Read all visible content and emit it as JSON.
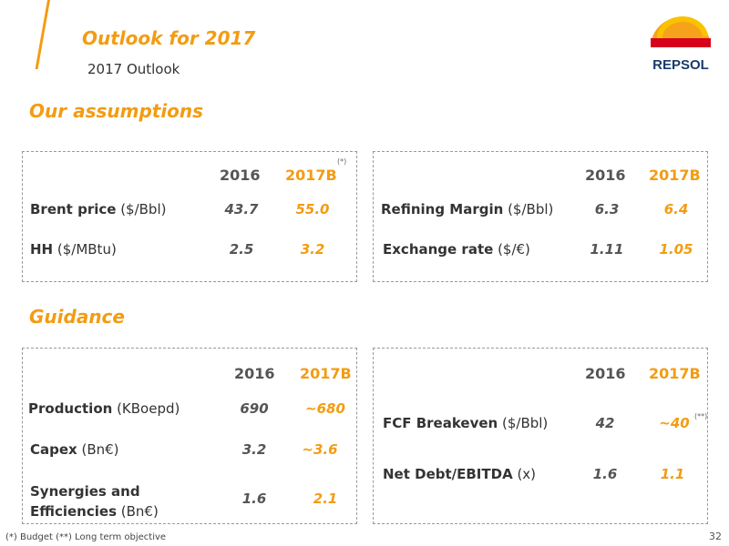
{
  "header": {
    "title": "Outlook for 2017",
    "subtitle": "2017 Outlook",
    "brand": "REPSOL"
  },
  "sections": {
    "assumptions": "Our assumptions",
    "guidance": "Guidance"
  },
  "assumptions_left": {
    "col_2016": "2016",
    "col_2017": "2017B",
    "note_mark": "(*)",
    "rows": [
      {
        "label_bold": "Brent price",
        "label_unit": " ($/Bbl)",
        "v2016": "43.7",
        "v2017": "55.0"
      },
      {
        "label_bold": "HH",
        "label_unit": " ($/MBtu)",
        "v2016": "2.5",
        "v2017": "3.2"
      }
    ]
  },
  "assumptions_right": {
    "col_2016": "2016",
    "col_2017": "2017B",
    "rows": [
      {
        "label_bold": "Refining Margin",
        "label_unit": " ($/Bbl)",
        "v2016": "6.3",
        "v2017": "6.4"
      },
      {
        "label_bold": "Exchange rate",
        "label_unit": " ($/€)",
        "v2016": "1.11",
        "v2017": "1.05"
      }
    ]
  },
  "guidance_left": {
    "col_2016": "2016",
    "col_2017": "2017B",
    "rows": [
      {
        "label_bold": "Production",
        "label_unit": " (KBoepd)",
        "v2016": "690",
        "v2017": "~680"
      },
      {
        "label_bold": "Capex",
        "label_unit": " (Bn€)",
        "v2016": "3.2",
        "v2017": "~3.6"
      },
      {
        "label_bold": "Synergies and",
        "label_bold2": "Efficiencies",
        "label_unit": " (Bn€)",
        "v2016": "1.6",
        "v2017": "2.1"
      }
    ]
  },
  "guidance_right": {
    "col_2016": "2016",
    "col_2017": "2017B",
    "note_mark": "(**)",
    "rows": [
      {
        "label_bold": "FCF Breakeven",
        "label_unit": " ($/Bbl)",
        "v2016": "42",
        "v2017": "~40"
      },
      {
        "label_bold": "Net Debt/EBITDA",
        "label_unit": " (x)",
        "v2016": "1.6",
        "v2017": "1.1"
      }
    ]
  },
  "footer": {
    "footnote": "(*) Budget (**) Long term objective",
    "page_number": "32"
  },
  "colors": {
    "accent": "#f39c12",
    "logo_red": "#d6001c",
    "logo_orange": "#f7a21b",
    "logo_yellow": "#f9c300"
  }
}
